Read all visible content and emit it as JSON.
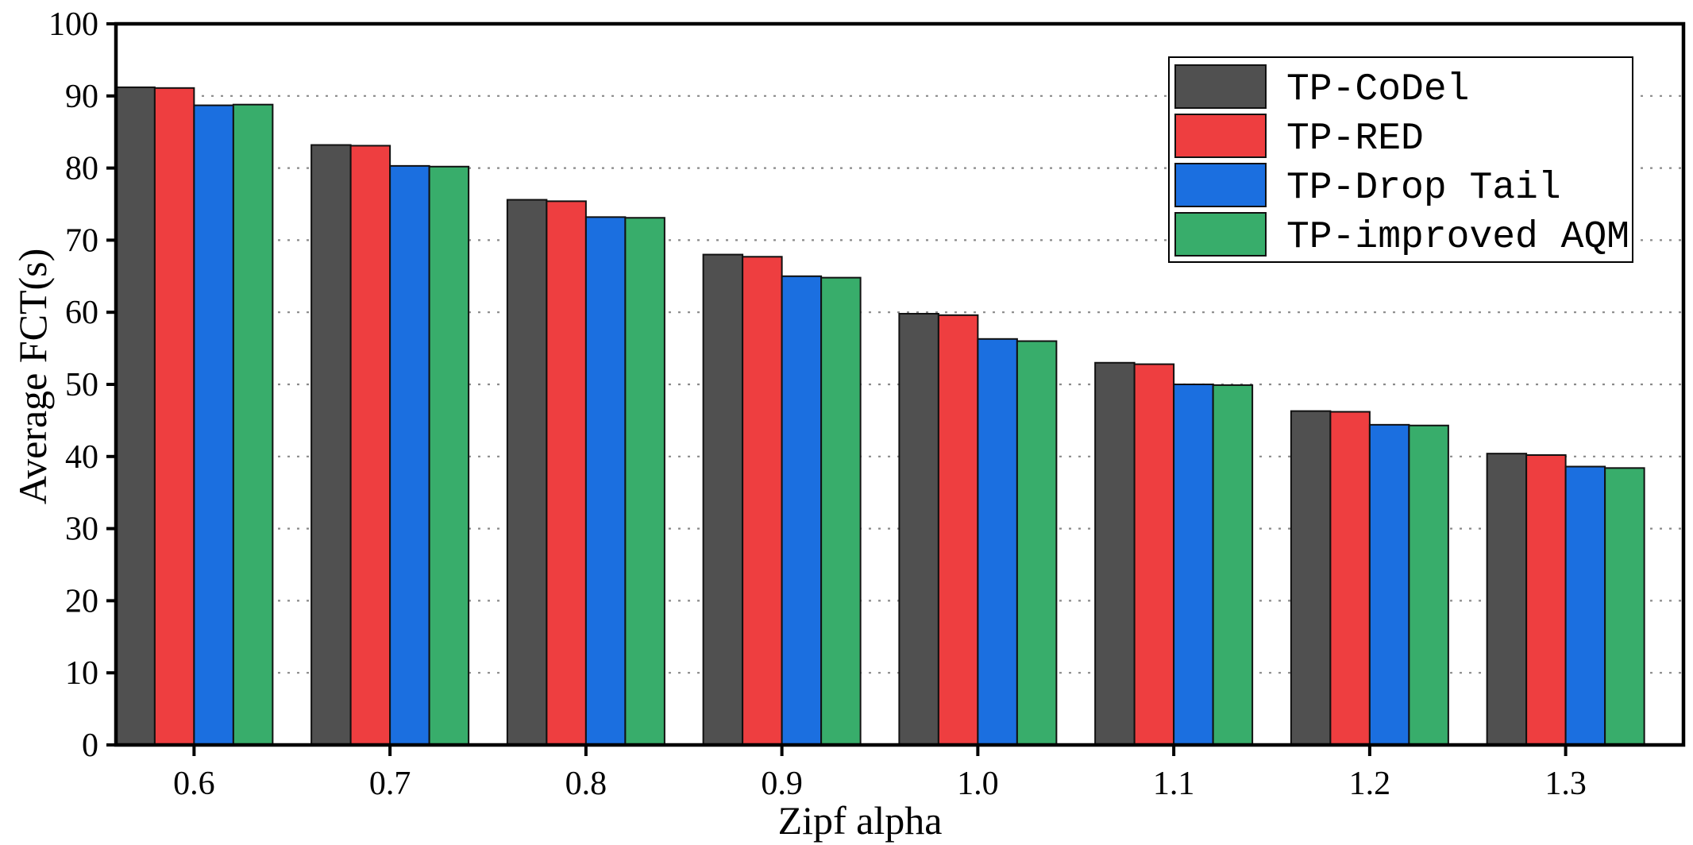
{
  "chart_data": {
    "type": "bar",
    "title": "",
    "xlabel": "Zipf alpha",
    "ylabel": "Average FCT(s)",
    "categories": [
      "0.6",
      "0.7",
      "0.8",
      "0.9",
      "1.0",
      "1.1",
      "1.2",
      "1.3"
    ],
    "ylim": [
      0,
      100
    ],
    "yticks": [
      "0",
      "10",
      "20",
      "30",
      "40",
      "50",
      "60",
      "70",
      "80",
      "90",
      "100"
    ],
    "grid": "horizontal dotted",
    "legend_position": "top-right",
    "series": [
      {
        "name": "TP-CoDel",
        "color": "#505050",
        "values": [
          91.2,
          83.2,
          75.6,
          68.0,
          59.8,
          53.0,
          46.3,
          40.4
        ]
      },
      {
        "name": "TP-RED",
        "color": "#EE3E40",
        "values": [
          91.1,
          83.1,
          75.4,
          67.7,
          59.6,
          52.8,
          46.2,
          40.2
        ]
      },
      {
        "name": "TP-Drop Tail",
        "color": "#1B6FE0",
        "values": [
          88.7,
          80.3,
          73.2,
          65.0,
          56.3,
          50.0,
          44.4,
          38.6
        ]
      },
      {
        "name": "TP-improved AQM",
        "color": "#38AD6B",
        "values": [
          88.8,
          80.2,
          73.1,
          64.8,
          56.0,
          49.9,
          44.3,
          38.4
        ]
      }
    ]
  }
}
